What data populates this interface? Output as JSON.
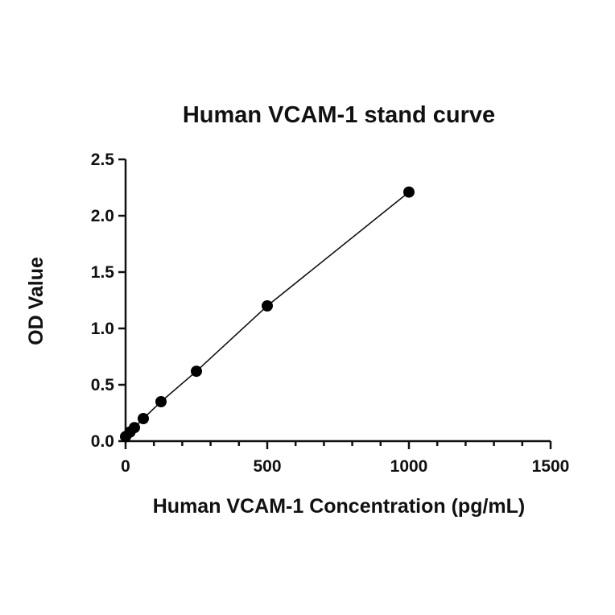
{
  "chart_data": {
    "type": "scatter",
    "title": "Human VCAM-1 stand curve",
    "xlabel": "Human VCAM-1 Concentration (pg/mL)",
    "ylabel": "OD Value",
    "xlim": [
      0,
      1500
    ],
    "ylim": [
      0,
      2.5
    ],
    "x_ticks": [
      0,
      500,
      1000,
      1500
    ],
    "x_tick_labels": [
      "0",
      "500",
      "1000",
      "1500"
    ],
    "x_minor_step": 100,
    "y_ticks": [
      0,
      0.5,
      1.0,
      1.5,
      2.0,
      2.5
    ],
    "y_tick_labels": [
      "0.0",
      "0.5",
      "1.0",
      "1.5",
      "2.0",
      "2.5"
    ],
    "grid": false,
    "fit_line": true,
    "series": [
      {
        "x": [
          0,
          15.6,
          31.25,
          62.5,
          125,
          250,
          500,
          1000
        ],
        "y": [
          0.04,
          0.08,
          0.12,
          0.2,
          0.35,
          0.62,
          1.2,
          2.21
        ]
      }
    ]
  }
}
